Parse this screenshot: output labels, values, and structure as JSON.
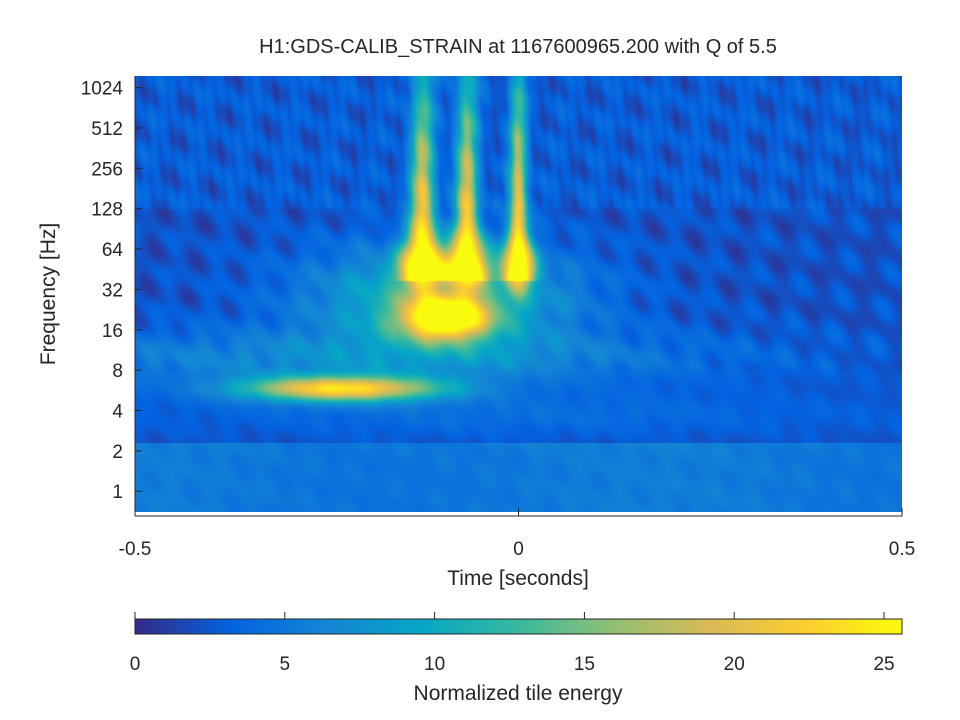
{
  "chart_data": {
    "type": "heatmap",
    "title": "H1:GDS-CALIB_STRAIN at 1167600965.200 with Q of 5.5",
    "xlabel": "Time [seconds]",
    "ylabel": "Frequency [Hz]",
    "xlim": [
      -0.5,
      0.5
    ],
    "ylim": [
      0.7,
      1250
    ],
    "yscale": "log2",
    "xticks": [
      {
        "value": -0.5,
        "label": "-0.5"
      },
      {
        "value": 0,
        "label": "0"
      },
      {
        "value": 0.5,
        "label": "0.5"
      }
    ],
    "yticks": [
      {
        "value": 1,
        "label": "1"
      },
      {
        "value": 2,
        "label": "2"
      },
      {
        "value": 4,
        "label": "4"
      },
      {
        "value": 8,
        "label": "8"
      },
      {
        "value": 16,
        "label": "16"
      },
      {
        "value": 32,
        "label": "32"
      },
      {
        "value": 64,
        "label": "64"
      },
      {
        "value": 128,
        "label": "128"
      },
      {
        "value": 256,
        "label": "256"
      },
      {
        "value": 512,
        "label": "512"
      },
      {
        "value": 1024,
        "label": "1024"
      }
    ],
    "colorbar": {
      "label": "Normalized tile energy",
      "range": [
        0,
        25.6
      ],
      "colormap": "parula",
      "ticks": [
        {
          "value": 0,
          "label": "0"
        },
        {
          "value": 5,
          "label": "5"
        },
        {
          "value": 10,
          "label": "10"
        },
        {
          "value": 15,
          "label": "15"
        },
        {
          "value": 20,
          "label": "20"
        },
        {
          "value": 25,
          "label": "25"
        }
      ]
    },
    "features": [
      {
        "t": -0.125,
        "f": 40,
        "energy": 24
      },
      {
        "t": -0.07,
        "f": 40,
        "energy": 22
      },
      {
        "t": 0.0,
        "f": 50,
        "energy": 23
      },
      {
        "t": -0.09,
        "f": 20,
        "energy": 25
      },
      {
        "t": -0.22,
        "f": 5.8,
        "energy": 21
      }
    ]
  }
}
